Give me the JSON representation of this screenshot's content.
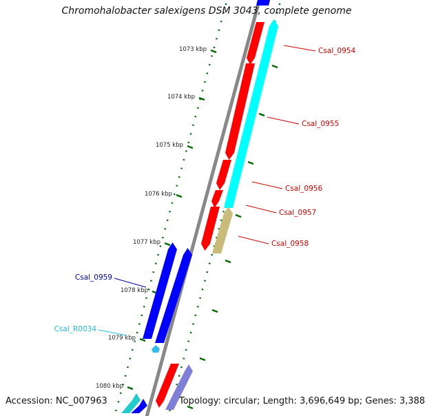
{
  "title": "Chromohalobacter salexigens DSM 3043, complete genome",
  "footer": {
    "accession": "Accession: NC_007963",
    "summary": "Topology: circular; Length: 3,696,649 bp; Genes: 3,388"
  },
  "ticks": [
    "1073 kbp",
    "1074 kbp",
    "1075 kbp",
    "1076 kbp",
    "1077 kbp",
    "1078 kbp",
    "1079 kbp",
    "1080 kbp"
  ],
  "genes": [
    {
      "id": "Csal_0954",
      "strand": "forward",
      "color": "#cc0000"
    },
    {
      "id": "Csal_0955",
      "strand": "forward",
      "color": "#cc0000"
    },
    {
      "id": "Csal_0956",
      "strand": "forward",
      "color": "#cc0000"
    },
    {
      "id": "Csal_0957",
      "strand": "forward",
      "color": "#cc0000"
    },
    {
      "id": "Csal_0958",
      "strand": "forward",
      "color": "#cc0000"
    },
    {
      "id": "Csal_0959",
      "strand": "reverse",
      "color": "#0000aa"
    },
    {
      "id": "Csal_R0034",
      "strand": "reverse",
      "color": "#22bbdd"
    }
  ],
  "colors": {
    "forward_cds": "#ff0000",
    "reverse_cds": "#0000ff",
    "operon_cyan": "#00ffff",
    "operon_khaki": "#c9bb7a",
    "rna": "#33bbee",
    "tick": "#006600",
    "backbone": "#888888"
  }
}
